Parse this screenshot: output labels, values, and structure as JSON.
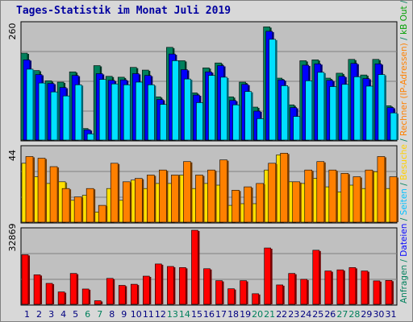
{
  "title": "Tages-Statistik im Monat Juli 2019",
  "side_legend": [
    {
      "text": "Anfragen",
      "color": "#00805c"
    },
    {
      "text": " / ",
      "color": "#00805c"
    },
    {
      "text": "Dateien",
      "color": "#0000ff"
    },
    {
      "text": " / ",
      "color": "#00805c"
    },
    {
      "text": "Seiten",
      "color": "#00c0ff"
    },
    {
      "text": " / ",
      "color": "#00805c"
    },
    {
      "text": "Besuche",
      "color": "#ffd000"
    },
    {
      "text": " / ",
      "color": "#00805c"
    },
    {
      "text": "Rechner (IP-Adressen)",
      "color": "#ff8000"
    },
    {
      "text": " / ",
      "color": "#00805c"
    },
    {
      "text": "kB Out",
      "color": "#00a000"
    },
    {
      "text": " / ",
      "color": "#00805c"
    },
    {
      "text": "kB In",
      "color": "#0080ff"
    },
    {
      "text": " / ",
      "color": "#00805c"
    },
    {
      "text": "kB F",
      "color": "#ff0000"
    }
  ],
  "colors": {
    "hits": "#00805c",
    "files": "#0000ff",
    "pages": "#00e0ff",
    "visits": "#ffe000",
    "sites": "#ff8000",
    "kbytes": "#ff0000",
    "weekend_label": "#00805c",
    "weekday_label": "#000080",
    "panel_bg": "#c0c0c0"
  },
  "chart_data": [
    {
      "type": "bar",
      "title": "",
      "max_label": "260",
      "ylim": [
        0,
        260
      ],
      "categories": [
        "1",
        "2",
        "3",
        "4",
        "5",
        "6",
        "7",
        "8",
        "9",
        "10",
        "11",
        "12",
        "13",
        "14",
        "15",
        "16",
        "17",
        "18",
        "19",
        "20",
        "21",
        "22",
        "23",
        "24",
        "25",
        "26",
        "27",
        "28",
        "29",
        "30",
        "31"
      ],
      "weekend": [
        6,
        7,
        13,
        14,
        20,
        21,
        27,
        28
      ],
      "series": [
        {
          "name": "Anfragen",
          "values": [
            195,
            156,
            133,
            130,
            153,
            26,
            167,
            143,
            141,
            163,
            157,
            97,
            208,
            178,
            106,
            162,
            173,
            97,
            130,
            74,
            254,
            139,
            79,
            178,
            180,
            139,
            150,
            181,
            146,
            181,
            77
          ]
        },
        {
          "name": "Dateien",
          "values": [
            180,
            147,
            127,
            118,
            145,
            23,
            149,
            134,
            135,
            149,
            145,
            91,
            193,
            158,
            101,
            153,
            167,
            89,
            125,
            65,
            244,
            135,
            73,
            168,
            171,
            134,
            143,
            172,
            138,
            171,
            73
          ]
        },
        {
          "name": "Seiten",
          "values": [
            159,
            128,
            108,
            99,
            124,
            14,
            136,
            126,
            124,
            130,
            124,
            80,
            178,
            137,
            84,
            145,
            141,
            79,
            109,
            48,
            226,
            122,
            53,
            133,
            152,
            120,
            125,
            142,
            121,
            147,
            61
          ]
        }
      ]
    },
    {
      "type": "bar",
      "title": "",
      "max_label": "44",
      "ylim": [
        0,
        44
      ],
      "categories": [
        "1",
        "2",
        "3",
        "4",
        "5",
        "6",
        "7",
        "8",
        "9",
        "10",
        "11",
        "12",
        "13",
        "14",
        "15",
        "16",
        "17",
        "18",
        "19",
        "20",
        "21",
        "22",
        "23",
        "24",
        "25",
        "26",
        "27",
        "28",
        "29",
        "30",
        "31"
      ],
      "series": [
        {
          "name": "Besuche",
          "values": [
            35,
            27,
            23,
            24,
            13,
            16,
            6,
            20,
            13,
            25,
            20,
            23,
            23,
            28,
            20,
            23,
            22,
            10,
            11,
            11,
            31,
            40,
            24,
            23,
            26,
            21,
            18,
            22,
            20,
            30,
            20
          ]
        },
        {
          "name": "Rechner",
          "values": [
            39,
            38,
            33,
            20,
            15,
            20,
            10,
            35,
            24,
            26,
            28,
            31,
            28,
            36,
            28,
            31,
            37,
            19,
            21,
            23,
            35,
            41,
            24,
            31,
            36,
            31,
            29,
            27,
            31,
            39,
            27
          ]
        }
      ]
    },
    {
      "type": "bar",
      "title": "",
      "max_label": "32869",
      "ylim": [
        0,
        32869
      ],
      "categories": [
        "1",
        "2",
        "3",
        "4",
        "5",
        "6",
        "7",
        "8",
        "9",
        "10",
        "11",
        "12",
        "13",
        "14",
        "15",
        "16",
        "17",
        "18",
        "19",
        "20",
        "21",
        "22",
        "23",
        "24",
        "25",
        "26",
        "27",
        "28",
        "29",
        "30",
        "31"
      ],
      "series": [
        {
          "name": "kB F",
          "values": [
            22000,
            13100,
            9300,
            5500,
            13700,
            6800,
            1600,
            11500,
            8400,
            8900,
            12500,
            17900,
            16800,
            16300,
            32869,
            15800,
            10500,
            6900,
            10500,
            4700,
            25000,
            8600,
            13700,
            11100,
            24000,
            14800,
            15300,
            16300,
            14800,
            10400,
            10600
          ]
        }
      ]
    }
  ]
}
